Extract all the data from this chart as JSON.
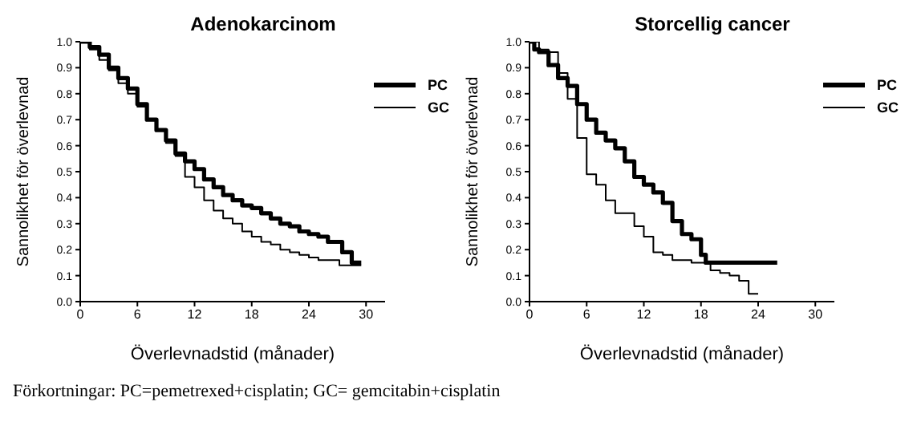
{
  "chart_data": [
    {
      "type": "step",
      "title": "Adenokarcinom",
      "xlabel": "Överlevnadstid (månader)",
      "ylabel": "Sannolikhet för överlevnad",
      "xlim": [
        0,
        32
      ],
      "xticks": [
        0,
        6,
        12,
        18,
        24,
        30
      ],
      "ylim": [
        0,
        1
      ],
      "yticks": [
        {
          "value": 0,
          "label": "0.0"
        },
        {
          "value": 0.1,
          "label": "0.1"
        },
        {
          "value": 0.2,
          "label": "0.2"
        },
        {
          "value": 0.3,
          "label": "0.3"
        },
        {
          "value": 0.4,
          "label": "0.4"
        },
        {
          "value": 0.5,
          "label": "0.5"
        },
        {
          "value": 0.6,
          "label": "0.6"
        },
        {
          "value": 0.7,
          "label": "0.7"
        },
        {
          "value": 0.8,
          "label": "0.8"
        },
        {
          "value": 0.9,
          "label": "0.9"
        },
        {
          "value": 1,
          "label": "1.0"
        }
      ],
      "grid": false,
      "legend": "top right",
      "annotations": [
        "Förkortningar: PC=pemetrexed+cisplatin; GC= gemcitabin+cisplatin"
      ],
      "series": [
        {
          "name": "PC",
          "color": "#000000",
          "x": [
            0,
            1,
            2,
            3,
            4,
            5,
            6,
            7,
            8,
            9,
            10,
            11,
            12,
            13,
            14,
            15,
            16,
            17,
            18,
            19,
            20,
            21,
            22,
            23,
            24,
            25,
            26,
            27,
            27.5,
            28,
            28.5,
            29.5
          ],
          "values": [
            1,
            0.98,
            0.95,
            0.9,
            0.86,
            0.82,
            0.76,
            0.7,
            0.66,
            0.62,
            0.57,
            0.54,
            0.51,
            0.47,
            0.44,
            0.41,
            0.39,
            0.37,
            0.36,
            0.34,
            0.32,
            0.3,
            0.29,
            0.27,
            0.26,
            0.25,
            0.23,
            0.23,
            0.19,
            0.19,
            0.15,
            0.15
          ]
        },
        {
          "name": "GC",
          "color": "#000000",
          "x": [
            0,
            1,
            2,
            3,
            4,
            5,
            6,
            7,
            8,
            9,
            10,
            11,
            12,
            13,
            14,
            15,
            16,
            17,
            18,
            19,
            20,
            21,
            22,
            23,
            24,
            25,
            27,
            27.2,
            29.5
          ],
          "values": [
            1,
            0.97,
            0.93,
            0.89,
            0.84,
            0.8,
            0.75,
            0.7,
            0.66,
            0.61,
            0.56,
            0.48,
            0.44,
            0.39,
            0.35,
            0.32,
            0.3,
            0.27,
            0.25,
            0.23,
            0.22,
            0.2,
            0.19,
            0.18,
            0.17,
            0.16,
            0.16,
            0.14,
            0.14
          ]
        }
      ]
    },
    {
      "type": "step",
      "title": "Storcellig cancer",
      "xlabel": "Överlevnadstid (månader)",
      "ylabel": "Sannolikhet för överlevnad",
      "xlim": [
        0,
        32
      ],
      "xticks": [
        0,
        6,
        12,
        18,
        24,
        30
      ],
      "ylim": [
        0,
        1
      ],
      "yticks": [
        {
          "value": 0,
          "label": "0.0"
        },
        {
          "value": 0.1,
          "label": "0.1"
        },
        {
          "value": 0.2,
          "label": "0.2"
        },
        {
          "value": 0.3,
          "label": "0.3"
        },
        {
          "value": 0.4,
          "label": "0.4"
        },
        {
          "value": 0.5,
          "label": "0.5"
        },
        {
          "value": 0.6,
          "label": "0.6"
        },
        {
          "value": 0.7,
          "label": "0.7"
        },
        {
          "value": 0.8,
          "label": "0.8"
        },
        {
          "value": 0.9,
          "label": "0.9"
        },
        {
          "value": 1,
          "label": "1.0"
        }
      ],
      "grid": false,
      "legend": "top right",
      "series": [
        {
          "name": "PC",
          "color": "#000000",
          "x": [
            0,
            0.5,
            1,
            2,
            3,
            4,
            5,
            6,
            7,
            8,
            9,
            10,
            11,
            12,
            13,
            14,
            15,
            16,
            17,
            18,
            18.5,
            26
          ],
          "values": [
            1,
            0.97,
            0.96,
            0.91,
            0.86,
            0.83,
            0.76,
            0.7,
            0.65,
            0.62,
            0.59,
            0.54,
            0.48,
            0.45,
            0.42,
            0.38,
            0.31,
            0.26,
            0.24,
            0.18,
            0.15,
            0.15
          ]
        },
        {
          "name": "GC",
          "color": "#000000",
          "x": [
            0,
            1,
            2,
            3,
            4,
            5,
            6,
            7,
            8,
            9,
            10,
            11,
            12,
            13,
            14,
            15,
            17,
            18,
            19,
            20,
            21,
            22,
            23,
            24
          ],
          "values": [
            1,
            0.97,
            0.96,
            0.88,
            0.78,
            0.63,
            0.49,
            0.45,
            0.39,
            0.34,
            0.34,
            0.29,
            0.25,
            0.19,
            0.18,
            0.16,
            0.15,
            0.15,
            0.12,
            0.11,
            0.1,
            0.08,
            0.03,
            0.03
          ]
        }
      ]
    }
  ]
}
